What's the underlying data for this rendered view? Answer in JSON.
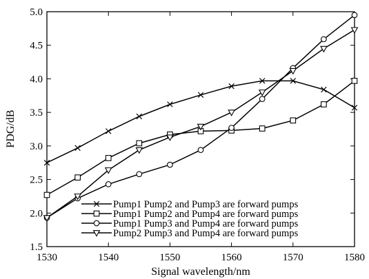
{
  "chart_data": {
    "type": "line",
    "xlabel": "Signal wavelength/nm",
    "ylabel": "PDG/dB",
    "xlim": [
      1530,
      1580
    ],
    "ylim": [
      1.5,
      5.0
    ],
    "xticks": [
      1530,
      1540,
      1550,
      1560,
      1570,
      1580
    ],
    "xtick_labels": [
      "1530",
      "1540",
      "1550",
      "1560",
      "1570",
      "1580"
    ],
    "yticks": [
      1.5,
      2.0,
      2.5,
      3.0,
      3.5,
      4.0,
      4.5,
      5.0
    ],
    "ytick_labels": [
      "1.5",
      "2.0",
      "2.5",
      "3.0",
      "3.5",
      "4.0",
      "4.5",
      "5.0"
    ],
    "grid": false,
    "legend_position": "bottom-right",
    "x": [
      1530,
      1535,
      1540,
      1545,
      1550,
      1555,
      1560,
      1565,
      1570,
      1575,
      1580
    ],
    "series": [
      {
        "name": "Pump1 Pump2  and Pump3 are forward pumps",
        "marker": "x",
        "values": [
          2.75,
          2.97,
          3.22,
          3.44,
          3.62,
          3.76,
          3.89,
          3.97,
          3.97,
          3.84,
          3.57
        ]
      },
      {
        "name": "Pump1 Pump2  and Pump4 are forward pumps",
        "marker": "square",
        "values": [
          2.27,
          2.53,
          2.82,
          3.04,
          3.17,
          3.22,
          3.23,
          3.26,
          3.38,
          3.62,
          3.97
        ]
      },
      {
        "name": "Pump1 Pump3  and Pump4 are forward pumps",
        "marker": "circle",
        "values": [
          1.93,
          2.22,
          2.43,
          2.58,
          2.72,
          2.94,
          3.27,
          3.7,
          4.16,
          4.59,
          4.95
        ]
      },
      {
        "name": "Pump2 Pump3  and Pump4 are forward pumps",
        "marker": "triangle-down",
        "values": [
          1.93,
          2.25,
          2.64,
          2.94,
          3.13,
          3.29,
          3.5,
          3.8,
          4.12,
          4.45,
          4.73
        ]
      }
    ]
  }
}
